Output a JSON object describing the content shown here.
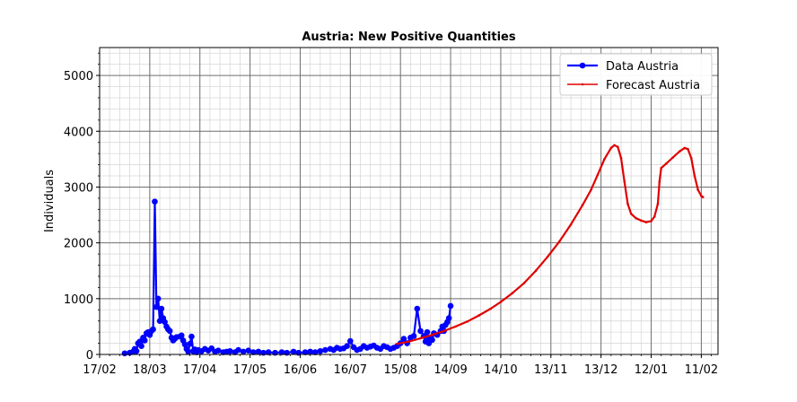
{
  "chart_data": {
    "type": "line",
    "title": "Austria: New Positive Quantities",
    "xlabel": "",
    "ylabel": "Individuals",
    "x_tick_labels": [
      "17/02",
      "18/03",
      "17/04",
      "17/05",
      "16/06",
      "16/07",
      "15/08",
      "14/09",
      "14/10",
      "13/11",
      "13/12",
      "12/01",
      "11/02"
    ],
    "xlim": [
      "2020-02-17",
      "2021-02-21"
    ],
    "ylim": [
      0,
      5500
    ],
    "y_ticks": [
      0,
      1000,
      2000,
      3000,
      4000,
      5000
    ],
    "grid": true,
    "legend_position": "top-right",
    "series": [
      {
        "name": "Data Austria",
        "color": "#0000ff",
        "marker": "circle",
        "points": [
          [
            "2020-03-03",
            20
          ],
          [
            "2020-03-06",
            30
          ],
          [
            "2020-03-08",
            50
          ],
          [
            "2020-03-09",
            100
          ],
          [
            "2020-03-10",
            60
          ],
          [
            "2020-03-11",
            200
          ],
          [
            "2020-03-12",
            230
          ],
          [
            "2020-03-13",
            150
          ],
          [
            "2020-03-14",
            300
          ],
          [
            "2020-03-15",
            250
          ],
          [
            "2020-03-16",
            380
          ],
          [
            "2020-03-17",
            400
          ],
          [
            "2020-03-18",
            350
          ],
          [
            "2020-03-19",
            420
          ],
          [
            "2020-03-20",
            450
          ],
          [
            "2020-03-21",
            2740
          ],
          [
            "2020-03-22",
            850
          ],
          [
            "2020-03-23",
            1000
          ],
          [
            "2020-03-24",
            600
          ],
          [
            "2020-03-25",
            820
          ],
          [
            "2020-03-26",
            650
          ],
          [
            "2020-03-27",
            580
          ],
          [
            "2020-03-28",
            500
          ],
          [
            "2020-03-29",
            450
          ],
          [
            "2020-03-30",
            420
          ],
          [
            "2020-03-31",
            300
          ],
          [
            "2020-04-01",
            250
          ],
          [
            "2020-04-02",
            280
          ],
          [
            "2020-04-03",
            310
          ],
          [
            "2020-04-05",
            320
          ],
          [
            "2020-04-06",
            340
          ],
          [
            "2020-04-07",
            250
          ],
          [
            "2020-04-08",
            180
          ],
          [
            "2020-04-09",
            100
          ],
          [
            "2020-04-10",
            50
          ],
          [
            "2020-04-11",
            190
          ],
          [
            "2020-04-12",
            320
          ],
          [
            "2020-04-13",
            60
          ],
          [
            "2020-04-14",
            90
          ],
          [
            "2020-04-15",
            40
          ],
          [
            "2020-04-16",
            80
          ],
          [
            "2020-04-18",
            60
          ],
          [
            "2020-04-20",
            100
          ],
          [
            "2020-04-22",
            70
          ],
          [
            "2020-04-24",
            110
          ],
          [
            "2020-04-26",
            50
          ],
          [
            "2020-04-28",
            70
          ],
          [
            "2020-05-01",
            40
          ],
          [
            "2020-05-03",
            50
          ],
          [
            "2020-05-05",
            60
          ],
          [
            "2020-05-08",
            40
          ],
          [
            "2020-05-10",
            80
          ],
          [
            "2020-05-13",
            50
          ],
          [
            "2020-05-16",
            70
          ],
          [
            "2020-05-19",
            40
          ],
          [
            "2020-05-22",
            50
          ],
          [
            "2020-05-25",
            30
          ],
          [
            "2020-05-28",
            40
          ],
          [
            "2020-06-01",
            30
          ],
          [
            "2020-06-05",
            40
          ],
          [
            "2020-06-08",
            30
          ],
          [
            "2020-06-12",
            50
          ],
          [
            "2020-06-15",
            30
          ],
          [
            "2020-06-19",
            40
          ],
          [
            "2020-06-22",
            50
          ],
          [
            "2020-06-25",
            40
          ],
          [
            "2020-06-28",
            60
          ],
          [
            "2020-07-01",
            80
          ],
          [
            "2020-07-04",
            100
          ],
          [
            "2020-07-06",
            80
          ],
          [
            "2020-07-08",
            120
          ],
          [
            "2020-07-10",
            100
          ],
          [
            "2020-07-12",
            110
          ],
          [
            "2020-07-14",
            150
          ],
          [
            "2020-07-16",
            240
          ],
          [
            "2020-07-18",
            130
          ],
          [
            "2020-07-20",
            80
          ],
          [
            "2020-07-22",
            100
          ],
          [
            "2020-07-24",
            150
          ],
          [
            "2020-07-26",
            120
          ],
          [
            "2020-07-28",
            140
          ],
          [
            "2020-07-30",
            160
          ],
          [
            "2020-08-01",
            120
          ],
          [
            "2020-08-03",
            100
          ],
          [
            "2020-08-05",
            150
          ],
          [
            "2020-08-07",
            130
          ],
          [
            "2020-08-09",
            100
          ],
          [
            "2020-08-11",
            120
          ],
          [
            "2020-08-13",
            150
          ],
          [
            "2020-08-15",
            200
          ],
          [
            "2020-08-17",
            280
          ],
          [
            "2020-08-19",
            200
          ],
          [
            "2020-08-21",
            300
          ],
          [
            "2020-08-23",
            330
          ],
          [
            "2020-08-25",
            820
          ],
          [
            "2020-08-27",
            420
          ],
          [
            "2020-08-29",
            330
          ],
          [
            "2020-08-30",
            230
          ],
          [
            "2020-08-31",
            400
          ],
          [
            "2020-09-01",
            200
          ],
          [
            "2020-09-02",
            300
          ],
          [
            "2020-09-03",
            260
          ],
          [
            "2020-09-04",
            380
          ],
          [
            "2020-09-06",
            350
          ],
          [
            "2020-09-08",
            420
          ],
          [
            "2020-09-09",
            500
          ],
          [
            "2020-09-10",
            420
          ],
          [
            "2020-09-11",
            530
          ],
          [
            "2020-09-12",
            580
          ],
          [
            "2020-09-13",
            650
          ],
          [
            "2020-09-14",
            870
          ]
        ]
      },
      {
        "name": "Forecast Austria",
        "color": "#e00000",
        "marker": "small-point",
        "points": [
          [
            "2020-08-13",
            190
          ],
          [
            "2020-08-20",
            230
          ],
          [
            "2020-08-27",
            290
          ],
          [
            "2020-09-03",
            350
          ],
          [
            "2020-09-10",
            420
          ],
          [
            "2020-09-17",
            500
          ],
          [
            "2020-09-24",
            590
          ],
          [
            "2020-10-01",
            700
          ],
          [
            "2020-10-08",
            820
          ],
          [
            "2020-10-14",
            940
          ],
          [
            "2020-10-21",
            1100
          ],
          [
            "2020-10-28",
            1280
          ],
          [
            "2020-11-04",
            1500
          ],
          [
            "2020-11-11",
            1750
          ],
          [
            "2020-11-18",
            2020
          ],
          [
            "2020-11-25",
            2330
          ],
          [
            "2020-12-02",
            2680
          ],
          [
            "2020-12-07",
            2950
          ],
          [
            "2020-12-11",
            3220
          ],
          [
            "2020-12-15",
            3500
          ],
          [
            "2020-12-19",
            3700
          ],
          [
            "2020-12-21",
            3750
          ],
          [
            "2020-12-23",
            3720
          ],
          [
            "2020-12-25",
            3520
          ],
          [
            "2020-12-27",
            3100
          ],
          [
            "2020-12-29",
            2700
          ],
          [
            "2020-12-31",
            2520
          ],
          [
            "2021-01-03",
            2440
          ],
          [
            "2021-01-06",
            2400
          ],
          [
            "2021-01-09",
            2370
          ],
          [
            "2021-01-12",
            2390
          ],
          [
            "2021-01-14",
            2470
          ],
          [
            "2021-01-16",
            2700
          ],
          [
            "2021-01-17",
            3100
          ],
          [
            "2021-01-18",
            3340
          ],
          [
            "2021-01-21",
            3420
          ],
          [
            "2021-01-25",
            3530
          ],
          [
            "2021-01-29",
            3640
          ],
          [
            "2021-02-01",
            3700
          ],
          [
            "2021-02-03",
            3680
          ],
          [
            "2021-02-05",
            3520
          ],
          [
            "2021-02-07",
            3200
          ],
          [
            "2021-02-09",
            2950
          ],
          [
            "2021-02-11",
            2840
          ],
          [
            "2021-02-12",
            2820
          ]
        ]
      }
    ]
  }
}
